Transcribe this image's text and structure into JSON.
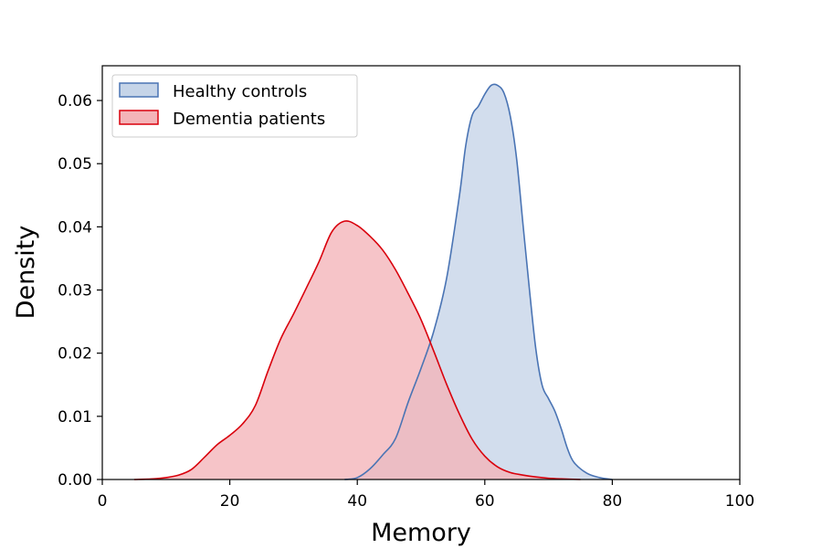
{
  "chart_data": {
    "type": "area",
    "title": "",
    "xlabel": "Memory",
    "ylabel": "Density",
    "xlim": [
      0,
      100
    ],
    "ylim": [
      0,
      0.0655
    ],
    "xticks": [
      0,
      20,
      40,
      60,
      80,
      100
    ],
    "yticks": [
      0.0,
      0.01,
      0.02,
      0.03,
      0.04,
      0.05,
      0.06
    ],
    "xtick_labels": [
      "0",
      "20",
      "40",
      "60",
      "80",
      "100"
    ],
    "ytick_labels": [
      "0.00",
      "0.01",
      "0.02",
      "0.03",
      "0.04",
      "0.05",
      "0.06"
    ],
    "grid": false,
    "legend_position": "upper-left",
    "series": [
      {
        "name": "Healthy controls",
        "line_color": "#4a74b4",
        "fill_color": "#c5d4e8",
        "points": [
          [
            38,
            0.0
          ],
          [
            40,
            0.0003
          ],
          [
            42,
            0.0017
          ],
          [
            44,
            0.0039
          ],
          [
            46,
            0.0065
          ],
          [
            48,
            0.0123
          ],
          [
            50,
            0.0176
          ],
          [
            52,
            0.0235
          ],
          [
            54,
            0.0318
          ],
          [
            56,
            0.0448
          ],
          [
            57,
            0.0528
          ],
          [
            58,
            0.0576
          ],
          [
            59,
            0.0591
          ],
          [
            60,
            0.061
          ],
          [
            61,
            0.0624
          ],
          [
            62,
            0.0624
          ],
          [
            63,
            0.0612
          ],
          [
            64,
            0.0575
          ],
          [
            65,
            0.0507
          ],
          [
            66,
            0.0403
          ],
          [
            67,
            0.0301
          ],
          [
            68,
            0.0207
          ],
          [
            69,
            0.0149
          ],
          [
            70,
            0.0128
          ],
          [
            71,
            0.0108
          ],
          [
            72,
            0.008
          ],
          [
            73,
            0.0048
          ],
          [
            74,
            0.0027
          ],
          [
            76,
            0.001
          ],
          [
            78,
            0.0003
          ],
          [
            80,
            0.0
          ]
        ]
      },
      {
        "name": "Dementia patients",
        "line_color": "#d9000c",
        "fill_color": "#f4b4b8",
        "points": [
          [
            5,
            0.0
          ],
          [
            8,
            0.0001
          ],
          [
            10,
            0.0003
          ],
          [
            12,
            0.0007
          ],
          [
            14,
            0.0016
          ],
          [
            16,
            0.0035
          ],
          [
            18,
            0.0055
          ],
          [
            20,
            0.007
          ],
          [
            22,
            0.0088
          ],
          [
            24,
            0.0117
          ],
          [
            26,
            0.0172
          ],
          [
            28,
            0.0223
          ],
          [
            30,
            0.0262
          ],
          [
            32,
            0.0303
          ],
          [
            34,
            0.0345
          ],
          [
            36,
            0.0392
          ],
          [
            38,
            0.0409
          ],
          [
            40,
            0.0402
          ],
          [
            42,
            0.0385
          ],
          [
            44,
            0.0363
          ],
          [
            46,
            0.0332
          ],
          [
            48,
            0.0294
          ],
          [
            50,
            0.0253
          ],
          [
            52,
            0.0203
          ],
          [
            54,
            0.0151
          ],
          [
            56,
            0.0104
          ],
          [
            58,
            0.0064
          ],
          [
            60,
            0.0037
          ],
          [
            62,
            0.002
          ],
          [
            64,
            0.0011
          ],
          [
            66,
            0.0007
          ],
          [
            68,
            0.0004
          ],
          [
            70,
            0.0002
          ],
          [
            72,
            0.0001
          ],
          [
            75,
            0.0
          ]
        ]
      }
    ]
  }
}
